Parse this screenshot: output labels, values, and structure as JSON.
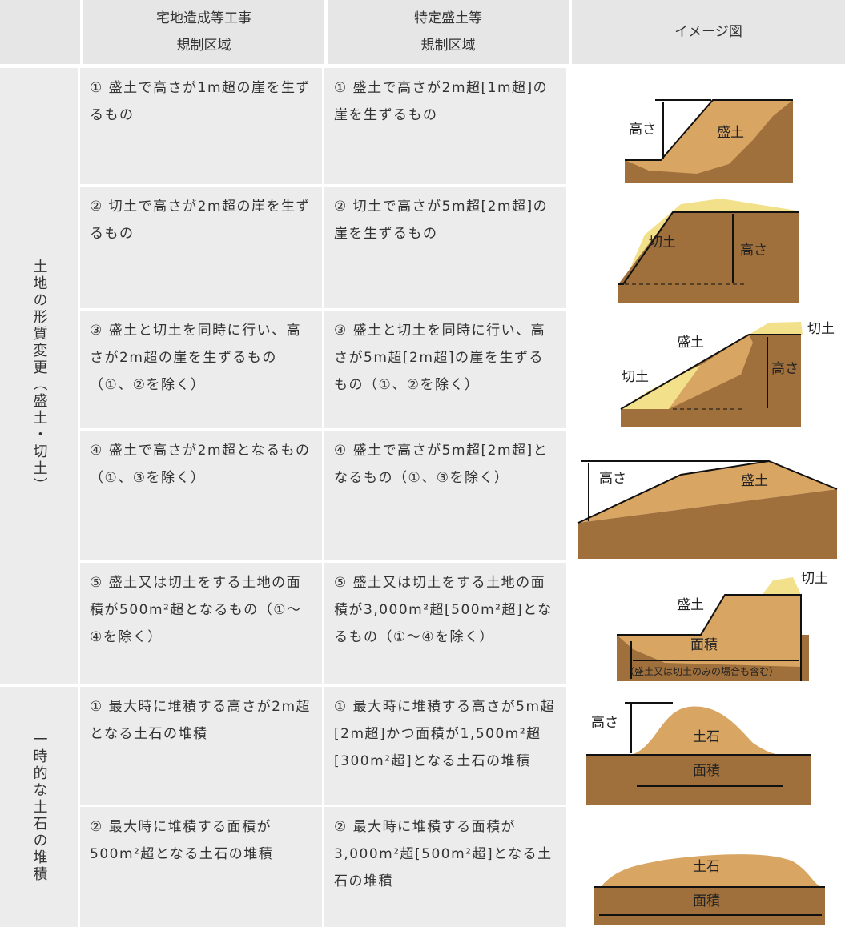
{
  "header": {
    "columns": [
      [
        "宅地造成等工事",
        "規制区域"
      ],
      [
        "特定盛土等",
        "規制区域"
      ],
      [
        "イメージ図"
      ]
    ]
  },
  "groups": [
    {
      "label": "土地の形質変更（盛土・切土）",
      "rows": [
        {
          "residential": "① 盛土で高さが1m超の崖を生ずるもの",
          "specific": "① 盛土で高さが2m超[1m超]の崖を生ずるもの",
          "image_labels": [
            "高さ",
            "盛土"
          ]
        },
        {
          "residential": "② 切土で高さが2m超の崖を生ずるもの",
          "specific": "② 切土で高さが5m超[2m超]の崖を生ずるもの",
          "image_labels": [
            "切土",
            "高さ"
          ]
        },
        {
          "residential": "③ 盛土と切土を同時に行い、高さが2m超の崖を生ずるもの（①、②を除く）",
          "specific": "③ 盛土と切土を同時に行い、高さが5m超[2m超]の崖を生ずるもの（①、②を除く）",
          "image_labels": [
            "盛土",
            "切土",
            "切土",
            "高さ"
          ]
        },
        {
          "residential": "④ 盛土で高さが2m超となるもの（①、③を除く）",
          "specific": "④ 盛土で高さが5m超[2m超]となるもの（①、③を除く）",
          "image_labels": [
            "高さ",
            "盛土"
          ]
        },
        {
          "residential": "⑤ 盛土又は切土をする土地の面積が500m²超となるもの（①～④を除く）",
          "specific": "⑤ 盛土又は切土をする土地の面積が3,000m²超[500m²超]となるもの（①～④を除く）",
          "image_labels": [
            "盛土",
            "切土",
            "面積",
            "（盛土又は切土のみの場合も含む）"
          ]
        }
      ]
    },
    {
      "label": "一時的な土石の堆積",
      "rows": [
        {
          "residential": "① 最大時に堆積する高さが2m超となる土石の堆積",
          "specific": "① 最大時に堆積する高さが5m超[2m超]かつ面積が1,500m²超[300m²超]となる土石の堆積",
          "image_labels": [
            "高さ",
            "土石",
            "面積"
          ]
        },
        {
          "residential": "② 最大時に堆積する面積が500m²超となる土石の堆積",
          "specific": "② 最大時に堆積する面積が3,000m²超[500m²超]となる土石の堆積",
          "image_labels": [
            "土石",
            "面積"
          ]
        }
      ]
    }
  ]
}
